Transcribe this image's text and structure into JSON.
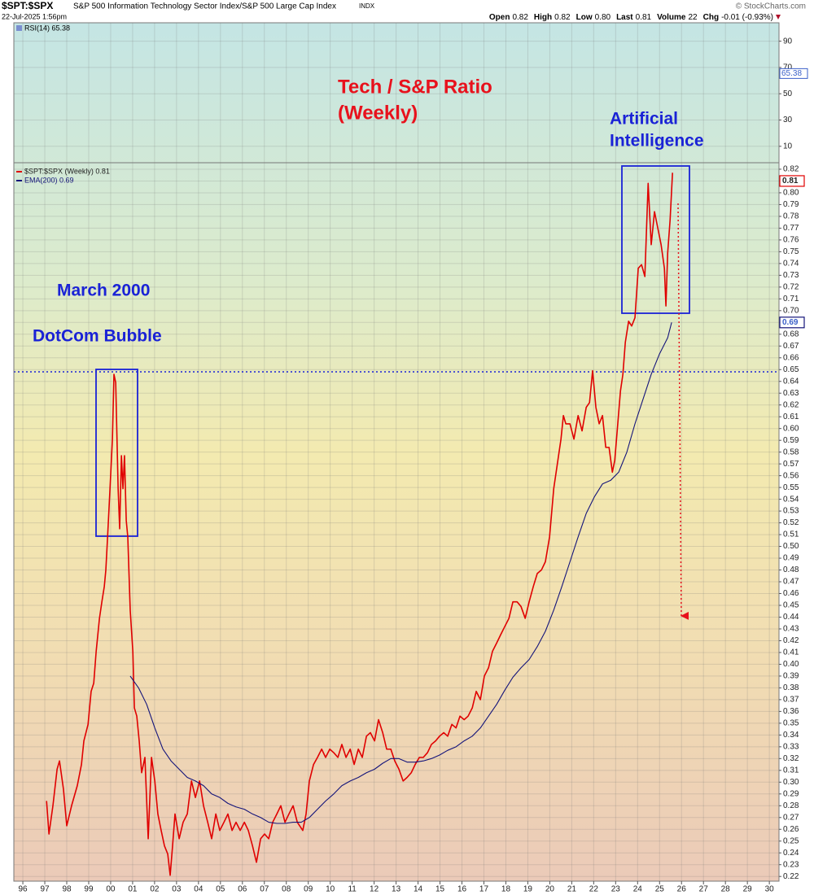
{
  "chart_data": {
    "type": "line",
    "symbol": "$SPT:$SPX",
    "description": "S&P 500 Information Technology Sector Index/S&P 500 Large Cap Index",
    "exchange": "INDX",
    "date": "22-Jul-2025 1:56pm",
    "watermark": "© StockCharts.com",
    "quote": [
      {
        "label": "Open",
        "value": "0.82"
      },
      {
        "label": "High",
        "value": "0.82"
      },
      {
        "label": "Low",
        "value": "0.80"
      },
      {
        "label": "Last",
        "value": "0.81"
      },
      {
        "label": "Volume",
        "value": "22"
      },
      {
        "label": "Chg",
        "value": "-0.01 (-0.93%)"
      }
    ],
    "annotations": {
      "title": [
        "Tech / S&P Ratio",
        "(Weekly)"
      ],
      "ai": [
        "Artificial",
        "Intelligence"
      ],
      "march": "March 2000",
      "dotcom": "DotCom Bubble"
    },
    "rsi": {
      "label": "RSI(14) 65.38",
      "badge": 65.38,
      "ylim": [
        -2.5,
        104
      ],
      "yticks": [
        10,
        30,
        50,
        70,
        90
      ]
    },
    "grid": true,
    "xlim": [
      1995.59,
      2030.44
    ],
    "xticks": [
      {
        "value": 1996,
        "label": "96"
      },
      {
        "value": 1997,
        "label": "97"
      },
      {
        "value": 1998,
        "label": "98"
      },
      {
        "value": 1999,
        "label": "99"
      },
      {
        "value": 2000,
        "label": "00"
      },
      {
        "value": 2001,
        "label": "01"
      },
      {
        "value": 2002,
        "label": "02"
      },
      {
        "value": 2003,
        "label": "03"
      },
      {
        "value": 2004,
        "label": "04"
      },
      {
        "value": 2005,
        "label": "05"
      },
      {
        "value": 2006,
        "label": "06"
      },
      {
        "value": 2007,
        "label": "07"
      },
      {
        "value": 2008,
        "label": "08"
      },
      {
        "value": 2009,
        "label": "09"
      },
      {
        "value": 2010,
        "label": "10"
      },
      {
        "value": 2011,
        "label": "11"
      },
      {
        "value": 2012,
        "label": "12"
      },
      {
        "value": 2013,
        "label": "13"
      },
      {
        "value": 2014,
        "label": "14"
      },
      {
        "value": 2015,
        "label": "15"
      },
      {
        "value": 2016,
        "label": "16"
      },
      {
        "value": 2017,
        "label": "17"
      },
      {
        "value": 2018,
        "label": "18"
      },
      {
        "value": 2019,
        "label": "19"
      },
      {
        "value": 2020,
        "label": "20"
      },
      {
        "value": 2021,
        "label": "21"
      },
      {
        "value": 2022,
        "label": "22"
      },
      {
        "value": 2023,
        "label": "23"
      },
      {
        "value": 2024,
        "label": "24"
      },
      {
        "value": 2025,
        "label": "25"
      },
      {
        "value": 2026,
        "label": "26"
      },
      {
        "value": 2027,
        "label": "27"
      },
      {
        "value": 2028,
        "label": "28"
      },
      {
        "value": 2029,
        "label": "29"
      },
      {
        "value": 2030,
        "label": "30"
      }
    ],
    "ylim": [
      0.216,
      0.8255
    ],
    "yticks": [
      0.22,
      0.23,
      0.24,
      0.25,
      0.26,
      0.27,
      0.28,
      0.29,
      {
        "value": 0.3,
        "label": "0.30"
      },
      0.31,
      0.32,
      0.33,
      0.34,
      0.35,
      0.36,
      0.37,
      0.38,
      0.39,
      {
        "value": 0.4,
        "label": "0.40"
      },
      0.41,
      0.42,
      0.43,
      0.44,
      0.45,
      0.46,
      0.47,
      0.48,
      0.49,
      {
        "value": 0.5,
        "label": "0.50"
      },
      0.51,
      0.52,
      0.53,
      0.54,
      0.55,
      0.56,
      0.57,
      0.58,
      0.59,
      {
        "value": 0.6,
        "label": "0.60"
      },
      0.61,
      0.62,
      0.63,
      0.64,
      0.65,
      0.66,
      0.67,
      0.68,
      0.69,
      {
        "value": 0.7,
        "label": "0.70"
      },
      0.71,
      0.72,
      0.73,
      0.74,
      0.75,
      0.76,
      0.77,
      0.78,
      0.79,
      {
        "value": 0.8,
        "label": "0.80"
      },
      0.81,
      0.82
    ],
    "series": [
      {
        "name": "$SPT:$SPX (Weekly) 0.81",
        "color": "#e00000",
        "badge": 0.81,
        "x": [
          1997.08,
          1997.19,
          1997.37,
          1997.56,
          1997.67,
          1997.85,
          1998.0,
          1998.22,
          1998.48,
          1998.67,
          1998.78,
          1998.97,
          1999.11,
          1999.23,
          1999.34,
          1999.49,
          1999.6,
          1999.71,
          1999.78,
          1999.86,
          1999.97,
          2000.08,
          2000.15,
          2000.23,
          2000.34,
          2000.41,
          2000.49,
          2000.56,
          2000.63,
          2000.71,
          2000.78,
          2000.89,
          2001.01,
          2001.08,
          2001.19,
          2001.3,
          2001.41,
          2001.56,
          2001.71,
          2001.86,
          2002.01,
          2002.15,
          2002.3,
          2002.45,
          2002.6,
          2002.71,
          2002.82,
          2002.93,
          2003.12,
          2003.3,
          2003.49,
          2003.68,
          2003.86,
          2004.05,
          2004.23,
          2004.42,
          2004.6,
          2004.79,
          2004.97,
          2005.16,
          2005.34,
          2005.53,
          2005.71,
          2005.9,
          2006.09,
          2006.27,
          2006.46,
          2006.64,
          2006.83,
          2007.01,
          2007.2,
          2007.38,
          2007.57,
          2007.75,
          2007.94,
          2008.12,
          2008.31,
          2008.5,
          2008.75,
          2008.9,
          2009.05,
          2009.24,
          2009.42,
          2009.61,
          2009.79,
          2009.98,
          2010.16,
          2010.35,
          2010.53,
          2010.72,
          2010.91,
          2011.09,
          2011.28,
          2011.46,
          2011.65,
          2011.83,
          2012.02,
          2012.2,
          2012.39,
          2012.57,
          2012.76,
          2012.94,
          2013.13,
          2013.32,
          2013.5,
          2013.69,
          2013.87,
          2014.06,
          2014.24,
          2014.43,
          2014.61,
          2014.8,
          2014.98,
          2015.17,
          2015.35,
          2015.54,
          2015.73,
          2015.91,
          2016.1,
          2016.28,
          2016.47,
          2016.65,
          2016.84,
          2017.02,
          2017.21,
          2017.39,
          2017.58,
          2017.76,
          2017.95,
          2018.14,
          2018.32,
          2018.51,
          2018.69,
          2018.88,
          2019.06,
          2019.25,
          2019.43,
          2019.62,
          2019.8,
          2019.99,
          2020.18,
          2020.29,
          2020.4,
          2020.51,
          2020.62,
          2020.73,
          2020.92,
          2021.1,
          2021.29,
          2021.47,
          2021.66,
          2021.81,
          2021.95,
          2022.1,
          2022.25,
          2022.4,
          2022.55,
          2022.7,
          2022.85,
          2022.96,
          2023.07,
          2023.22,
          2023.33,
          2023.44,
          2023.59,
          2023.73,
          2023.88,
          2024.03,
          2024.18,
          2024.33,
          2024.48,
          2024.62,
          2024.77,
          2024.92,
          2025.07,
          2025.22,
          2025.29,
          2025.37,
          2025.48,
          2025.59
        ],
        "values": [
          0.284,
          0.256,
          0.28,
          0.311,
          0.318,
          0.294,
          0.263,
          0.28,
          0.297,
          0.315,
          0.335,
          0.349,
          0.377,
          0.384,
          0.411,
          0.439,
          0.453,
          0.466,
          0.48,
          0.508,
          0.549,
          0.591,
          0.646,
          0.639,
          0.549,
          0.515,
          0.577,
          0.549,
          0.577,
          0.522,
          0.508,
          0.446,
          0.411,
          0.363,
          0.356,
          0.335,
          0.308,
          0.321,
          0.252,
          0.321,
          0.301,
          0.273,
          0.259,
          0.246,
          0.239,
          0.221,
          0.246,
          0.273,
          0.252,
          0.266,
          0.273,
          0.301,
          0.287,
          0.301,
          0.28,
          0.266,
          0.252,
          0.273,
          0.259,
          0.266,
          0.273,
          0.259,
          0.266,
          0.259,
          0.266,
          0.259,
          0.246,
          0.232,
          0.252,
          0.256,
          0.252,
          0.266,
          0.273,
          0.28,
          0.266,
          0.273,
          0.28,
          0.266,
          0.259,
          0.273,
          0.301,
          0.315,
          0.321,
          0.328,
          0.321,
          0.328,
          0.325,
          0.321,
          0.332,
          0.321,
          0.328,
          0.315,
          0.328,
          0.321,
          0.339,
          0.342,
          0.335,
          0.353,
          0.342,
          0.328,
          0.328,
          0.318,
          0.311,
          0.301,
          0.304,
          0.308,
          0.315,
          0.321,
          0.321,
          0.325,
          0.332,
          0.335,
          0.339,
          0.342,
          0.339,
          0.349,
          0.346,
          0.356,
          0.353,
          0.356,
          0.363,
          0.377,
          0.37,
          0.39,
          0.397,
          0.411,
          0.418,
          0.425,
          0.432,
          0.439,
          0.453,
          0.453,
          0.449,
          0.439,
          0.453,
          0.466,
          0.477,
          0.48,
          0.487,
          0.508,
          0.549,
          0.563,
          0.577,
          0.591,
          0.611,
          0.604,
          0.604,
          0.591,
          0.611,
          0.598,
          0.618,
          0.622,
          0.649,
          0.618,
          0.604,
          0.611,
          0.584,
          0.584,
          0.563,
          0.573,
          0.598,
          0.632,
          0.646,
          0.673,
          0.691,
          0.687,
          0.694,
          0.736,
          0.739,
          0.729,
          0.808,
          0.756,
          0.784,
          0.77,
          0.756,
          0.736,
          0.704,
          0.749,
          0.777,
          0.817
        ]
      },
      {
        "name": "EMA(200) 0.69",
        "color": "#14147a",
        "badge": 0.69,
        "x": [
          2000.89,
          2001.27,
          2001.64,
          2002.01,
          2002.38,
          2002.75,
          2003.12,
          2003.49,
          2003.86,
          2004.23,
          2004.6,
          2004.97,
          2005.34,
          2005.71,
          2006.09,
          2006.46,
          2006.83,
          2007.2,
          2007.57,
          2007.94,
          2008.31,
          2008.68,
          2009.05,
          2009.42,
          2009.79,
          2010.16,
          2010.53,
          2010.91,
          2011.28,
          2011.65,
          2012.02,
          2012.39,
          2012.76,
          2013.13,
          2013.5,
          2013.87,
          2014.24,
          2014.61,
          2014.98,
          2015.35,
          2015.73,
          2016.1,
          2016.47,
          2016.84,
          2017.21,
          2017.58,
          2017.95,
          2018.32,
          2018.69,
          2019.06,
          2019.43,
          2019.8,
          2020.18,
          2020.55,
          2020.92,
          2021.29,
          2021.66,
          2022.03,
          2022.4,
          2022.77,
          2023.14,
          2023.51,
          2023.88,
          2024.25,
          2024.62,
          2024.99,
          2025.37,
          2025.55
        ],
        "values": [
          0.39,
          0.38,
          0.366,
          0.346,
          0.328,
          0.318,
          0.311,
          0.304,
          0.301,
          0.297,
          0.29,
          0.287,
          0.282,
          0.279,
          0.277,
          0.273,
          0.27,
          0.266,
          0.265,
          0.265,
          0.266,
          0.266,
          0.27,
          0.277,
          0.284,
          0.29,
          0.297,
          0.301,
          0.304,
          0.308,
          0.311,
          0.316,
          0.32,
          0.32,
          0.317,
          0.317,
          0.318,
          0.32,
          0.323,
          0.327,
          0.33,
          0.335,
          0.339,
          0.346,
          0.356,
          0.366,
          0.378,
          0.389,
          0.397,
          0.404,
          0.415,
          0.428,
          0.446,
          0.466,
          0.487,
          0.508,
          0.528,
          0.542,
          0.553,
          0.556,
          0.563,
          0.58,
          0.604,
          0.625,
          0.646,
          0.663,
          0.677,
          0.69
        ]
      }
    ]
  }
}
